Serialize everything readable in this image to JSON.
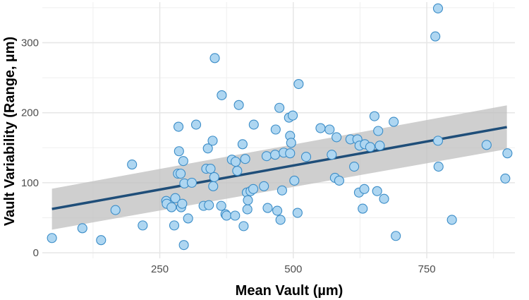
{
  "chart_data": {
    "type": "scatter",
    "title": "",
    "xlabel": "Mean Vault (µm)",
    "ylabel": "Vault Variability (Range, µm)",
    "xlim": [
      30,
      915
    ],
    "ylim": [
      -8,
      358
    ],
    "x_ticks": [
      250,
      500,
      750
    ],
    "x_tick_labels": [
      "250",
      "500",
      "750"
    ],
    "y_ticks": [
      0,
      100,
      200,
      300
    ],
    "y_tick_labels": [
      "0",
      "100",
      "200",
      "300"
    ],
    "grid": true,
    "legend": "none",
    "colors": {
      "point_fill": "#aed6f1",
      "point_stroke": "#3a8cc7",
      "trend_line": "#1f4e79",
      "confidence_band": "#bfbfbf",
      "grid": "#e6e6e6"
    },
    "trend": {
      "x": [
        48,
        900
      ],
      "fit": [
        62.5,
        179.5
      ],
      "lower": [
        33,
        148
      ],
      "upper": [
        91.5,
        210.5
      ]
    },
    "points": [
      {
        "x": 48,
        "y": 21
      },
      {
        "x": 105,
        "y": 35
      },
      {
        "x": 140,
        "y": 18
      },
      {
        "x": 167,
        "y": 61
      },
      {
        "x": 198,
        "y": 126
      },
      {
        "x": 218,
        "y": 39
      },
      {
        "x": 262,
        "y": 74
      },
      {
        "x": 263,
        "y": 70
      },
      {
        "x": 272,
        "y": 65
      },
      {
        "x": 277,
        "y": 39
      },
      {
        "x": 279,
        "y": 78
      },
      {
        "x": 284,
        "y": 113
      },
      {
        "x": 285,
        "y": 180
      },
      {
        "x": 286,
        "y": 145
      },
      {
        "x": 289,
        "y": 113
      },
      {
        "x": 290,
        "y": 65
      },
      {
        "x": 292,
        "y": 70
      },
      {
        "x": 294,
        "y": 131
      },
      {
        "x": 295,
        "y": 11
      },
      {
        "x": 296,
        "y": 99
      },
      {
        "x": 303,
        "y": 49
      },
      {
        "x": 310,
        "y": 100
      },
      {
        "x": 318,
        "y": 183
      },
      {
        "x": 332,
        "y": 67
      },
      {
        "x": 337,
        "y": 120
      },
      {
        "x": 340,
        "y": 149
      },
      {
        "x": 342,
        "y": 68
      },
      {
        "x": 345,
        "y": 120
      },
      {
        "x": 349,
        "y": 160
      },
      {
        "x": 350,
        "y": 95
      },
      {
        "x": 352,
        "y": 108
      },
      {
        "x": 353,
        "y": 278
      },
      {
        "x": 365,
        "y": 67
      },
      {
        "x": 366,
        "y": 225
      },
      {
        "x": 373,
        "y": 55
      },
      {
        "x": 375,
        "y": 53
      },
      {
        "x": 385,
        "y": 133
      },
      {
        "x": 391,
        "y": 53
      },
      {
        "x": 392,
        "y": 130
      },
      {
        "x": 395,
        "y": 117
      },
      {
        "x": 398,
        "y": 211
      },
      {
        "x": 405,
        "y": 155
      },
      {
        "x": 407,
        "y": 38
      },
      {
        "x": 410,
        "y": 134
      },
      {
        "x": 413,
        "y": 86
      },
      {
        "x": 414,
        "y": 62
      },
      {
        "x": 415,
        "y": 75
      },
      {
        "x": 420,
        "y": 88
      },
      {
        "x": 425,
        "y": 91
      },
      {
        "x": 426,
        "y": 183
      },
      {
        "x": 445,
        "y": 95
      },
      {
        "x": 450,
        "y": 138
      },
      {
        "x": 452,
        "y": 64
      },
      {
        "x": 466,
        "y": 140
      },
      {
        "x": 467,
        "y": 176
      },
      {
        "x": 470,
        "y": 60
      },
      {
        "x": 474,
        "y": 207
      },
      {
        "x": 476,
        "y": 47
      },
      {
        "x": 479,
        "y": 89
      },
      {
        "x": 482,
        "y": 143
      },
      {
        "x": 492,
        "y": 193
      },
      {
        "x": 494,
        "y": 167
      },
      {
        "x": 494,
        "y": 142
      },
      {
        "x": 496,
        "y": 157
      },
      {
        "x": 499,
        "y": 196
      },
      {
        "x": 502,
        "y": 103
      },
      {
        "x": 508,
        "y": 57
      },
      {
        "x": 510,
        "y": 241
      },
      {
        "x": 524,
        "y": 137
      },
      {
        "x": 551,
        "y": 178
      },
      {
        "x": 568,
        "y": 176
      },
      {
        "x": 572,
        "y": 140
      },
      {
        "x": 578,
        "y": 107
      },
      {
        "x": 581,
        "y": 165
      },
      {
        "x": 586,
        "y": 103
      },
      {
        "x": 607,
        "y": 162
      },
      {
        "x": 614,
        "y": 123
      },
      {
        "x": 620,
        "y": 162
      },
      {
        "x": 623,
        "y": 86
      },
      {
        "x": 624,
        "y": 153
      },
      {
        "x": 630,
        "y": 63
      },
      {
        "x": 633,
        "y": 91
      },
      {
        "x": 634,
        "y": 155
      },
      {
        "x": 644,
        "y": 151
      },
      {
        "x": 652,
        "y": 195
      },
      {
        "x": 657,
        "y": 88
      },
      {
        "x": 659,
        "y": 174
      },
      {
        "x": 662,
        "y": 153
      },
      {
        "x": 670,
        "y": 77
      },
      {
        "x": 688,
        "y": 187
      },
      {
        "x": 692,
        "y": 24
      },
      {
        "x": 766,
        "y": 309
      },
      {
        "x": 771,
        "y": 160
      },
      {
        "x": 771,
        "y": 349
      },
      {
        "x": 772,
        "y": 123
      },
      {
        "x": 797,
        "y": 47
      },
      {
        "x": 862,
        "y": 154
      },
      {
        "x": 897,
        "y": 106
      },
      {
        "x": 901,
        "y": 142
      }
    ]
  }
}
